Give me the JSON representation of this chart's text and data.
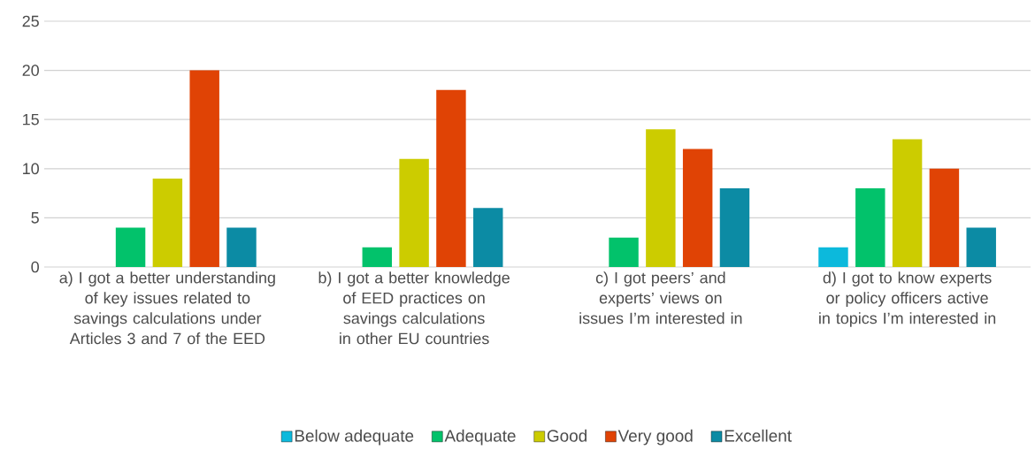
{
  "chart_data": {
    "type": "bar",
    "categories": [
      "a) I got a better understanding of key issues related to savings calculations under Articles 3 and 7 of the EED",
      "b) I got a better knowledge of EED practices on savings calculations in other EU countries",
      "c) I got peers’ and experts’ views on issues I’m interested in",
      "d) I got to know experts or policy officers active in topics I’m interested in"
    ],
    "series": [
      {
        "name": "Below adequate",
        "color": "#0cb9dc",
        "values": [
          0,
          0,
          0,
          2
        ]
      },
      {
        "name": "Adequate",
        "color": "#02c26b",
        "values": [
          4,
          2,
          3,
          8
        ]
      },
      {
        "name": "Good",
        "color": "#cccc00",
        "values": [
          9,
          11,
          14,
          13
        ]
      },
      {
        "name": "Very good",
        "color": "#e04305",
        "values": [
          20,
          18,
          12,
          10
        ]
      },
      {
        "name": "Excellent",
        "color": "#0c8ba4",
        "values": [
          4,
          6,
          8,
          4
        ]
      }
    ],
    "ylim": [
      0,
      25
    ],
    "yticks": [
      0,
      5,
      10,
      15,
      20,
      25
    ],
    "grid": "y",
    "legend": "bottom"
  }
}
